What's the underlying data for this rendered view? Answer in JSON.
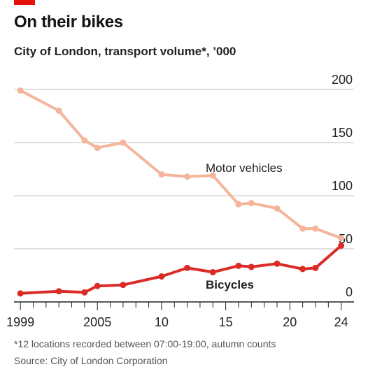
{
  "header": {
    "title": "On their bikes",
    "subtitle": "City of London, transport volume*, ’000"
  },
  "footer": {
    "footnote": "*12 locations recorded between 07:00-19:00, autumn counts",
    "source": "Source: City of London Corporation"
  },
  "colors": {
    "accent": "#e3120b",
    "motor": "#f4b59b",
    "bicycles": "#db2b27",
    "grid": "#bfbfbf",
    "axis": "#222222"
  },
  "chart_data": {
    "type": "line",
    "ylim": [
      0,
      200
    ],
    "yticks": [
      0,
      50,
      100,
      150,
      200
    ],
    "ytick_labels": [
      "0",
      "50",
      "100",
      "150",
      "200"
    ],
    "xlim": [
      1998.5,
      2025
    ],
    "xticks": [
      1999,
      2005,
      2010,
      2015,
      2020,
      2024
    ],
    "xtick_labels": [
      "1999",
      "2005",
      "10",
      "15",
      "20",
      "24"
    ],
    "grid": true,
    "series": [
      {
        "name": "Motor vehicles",
        "color": "#f4b59b",
        "x": [
          1999,
          2002,
          2004,
          2005,
          2007,
          2010,
          2012,
          2014,
          2016,
          2017,
          2019,
          2021,
          2022,
          2024
        ],
        "values": [
          199,
          180,
          152,
          145,
          150,
          120,
          118,
          119,
          92,
          93,
          88,
          69,
          69,
          60
        ]
      },
      {
        "name": "Bicycles",
        "color": "#db2b27",
        "x": [
          1999,
          2002,
          2004,
          2005,
          2007,
          2010,
          2012,
          2014,
          2016,
          2017,
          2019,
          2021,
          2022,
          2024
        ],
        "values": [
          8,
          10,
          9,
          15,
          16,
          24,
          32,
          28,
          34,
          33,
          36,
          31,
          32,
          53
        ]
      }
    ]
  }
}
